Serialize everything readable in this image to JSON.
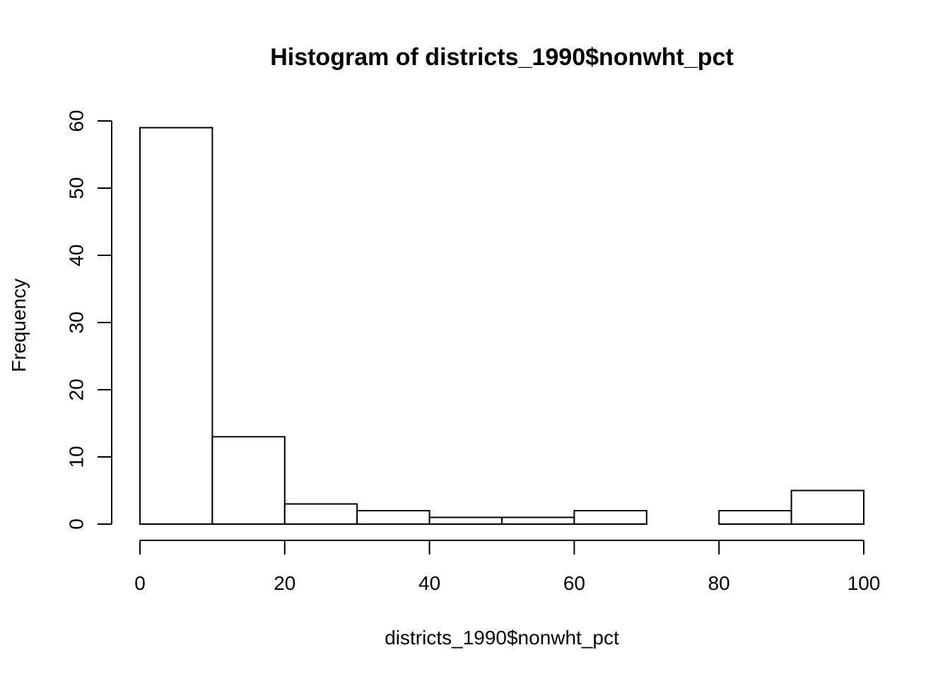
{
  "chart_data": {
    "type": "bar",
    "title": "Histogram of districts_1990$nonwht_pct",
    "xlabel": "districts_1990$nonwht_pct",
    "ylabel": "Frequency",
    "bins": [
      {
        "start": 0,
        "end": 10,
        "count": 59
      },
      {
        "start": 10,
        "end": 20,
        "count": 13
      },
      {
        "start": 20,
        "end": 30,
        "count": 3
      },
      {
        "start": 30,
        "end": 40,
        "count": 2
      },
      {
        "start": 40,
        "end": 50,
        "count": 1
      },
      {
        "start": 50,
        "end": 60,
        "count": 1
      },
      {
        "start": 60,
        "end": 70,
        "count": 2
      },
      {
        "start": 70,
        "end": 80,
        "count": 0
      },
      {
        "start": 80,
        "end": 90,
        "count": 2
      },
      {
        "start": 90,
        "end": 100,
        "count": 5
      }
    ],
    "xlim": [
      0,
      100
    ],
    "ylim": [
      0,
      60
    ],
    "x_ticks": [
      "0",
      "20",
      "40",
      "60",
      "80",
      "100"
    ],
    "y_ticks": [
      "0",
      "10",
      "20",
      "30",
      "40",
      "50",
      "60"
    ],
    "grid": false,
    "legend": "none",
    "colors": {
      "bar_fill": "#ffffff",
      "bar_stroke": "#000000"
    }
  }
}
